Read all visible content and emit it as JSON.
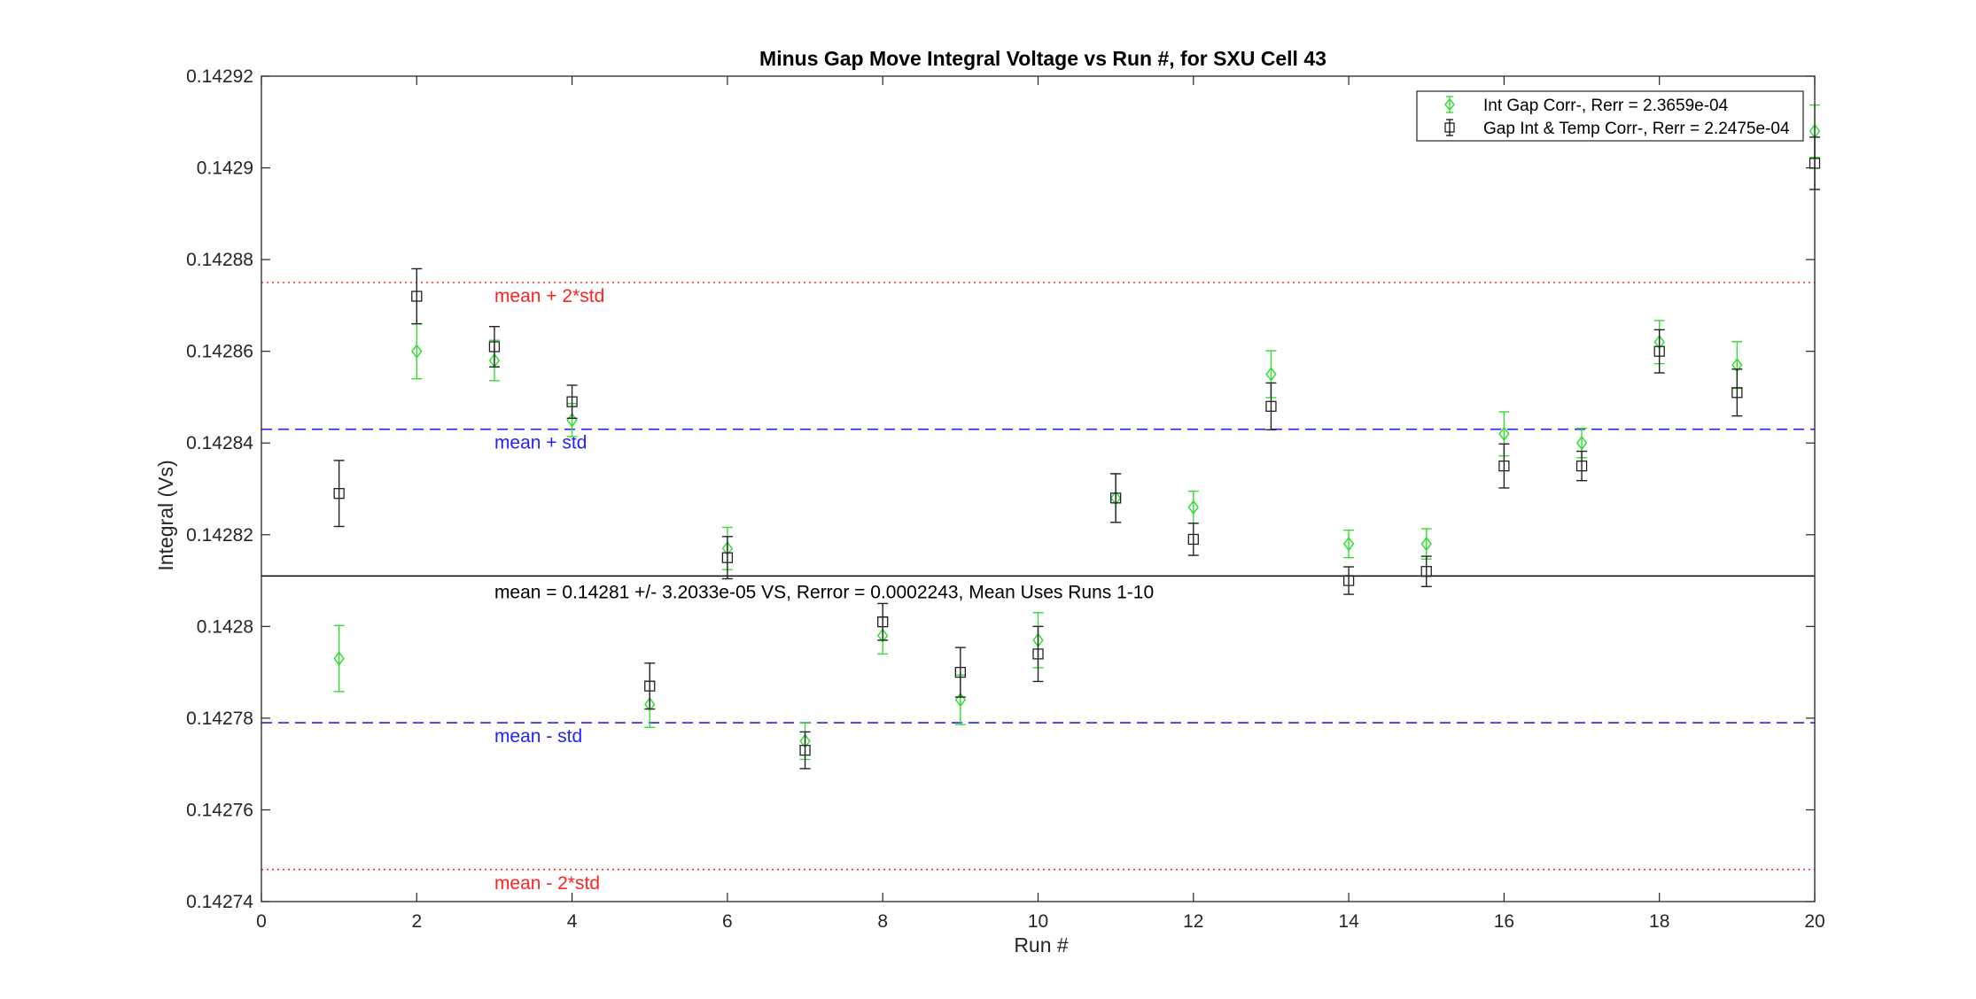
{
  "chart_data": {
    "type": "scatter",
    "title": "Minus Gap Move Integral Voltage vs Run #, for SXU Cell 43",
    "xlabel": "Run #",
    "ylabel": "Integral (Vs)",
    "xlim": [
      0,
      20
    ],
    "ylim": [
      0.14274,
      0.14292
    ],
    "xticks": [
      0,
      2,
      4,
      6,
      8,
      10,
      12,
      14,
      16,
      18,
      20
    ],
    "xtick_labels": [
      "0",
      "2",
      "4",
      "6",
      "8",
      "10",
      "12",
      "14",
      "16",
      "18",
      "20"
    ],
    "yticks": [
      0.14274,
      0.14276,
      0.14278,
      0.1428,
      0.14282,
      0.14284,
      0.14286,
      0.14288,
      0.1429,
      0.14292
    ],
    "ytick_labels": [
      "0.14274",
      "0.14276",
      "0.14278",
      "0.1428",
      "0.14282",
      "0.14284",
      "0.14286",
      "0.14288",
      "0.1429",
      "0.14292"
    ],
    "grid": false,
    "legend_position": "top-right",
    "series": [
      {
        "name": "Int Gap Corr-, Rerr = 2.3659e-04",
        "marker": "diamond",
        "color": "#33dd33",
        "x": [
          1,
          2,
          3,
          4,
          5,
          6,
          7,
          8,
          9,
          10,
          11,
          12,
          13,
          14,
          15,
          16,
          17,
          18,
          19,
          20
        ],
        "y": [
          0.142793,
          0.14286,
          0.142858,
          0.142845,
          0.142783,
          0.142817,
          0.142775,
          0.142798,
          0.142784,
          0.142797,
          0.142828,
          0.142826,
          0.142855,
          0.142818,
          0.142818,
          0.142842,
          0.14284,
          0.142862,
          0.142857,
          0.142908
        ],
        "err": [
          7.2e-06,
          6e-06,
          4.4e-06,
          3.6e-06,
          5e-06,
          4.6e-06,
          4e-06,
          4e-06,
          5.4e-06,
          6e-06,
          5.3e-06,
          3.5e-06,
          5.1e-06,
          3e-06,
          3.3e-06,
          4.8e-06,
          3.2e-06,
          4.7e-06,
          5.1e-06,
          5.7e-06
        ]
      },
      {
        "name": "Gap Int & Temp Corr-, Rerr = 2.2475e-04",
        "marker": "square",
        "color": "#222222",
        "x": [
          1,
          2,
          3,
          4,
          5,
          6,
          7,
          8,
          9,
          10,
          11,
          12,
          13,
          14,
          15,
          16,
          17,
          18,
          19,
          20
        ],
        "y": [
          0.142829,
          0.142872,
          0.142861,
          0.142849,
          0.142787,
          0.142815,
          0.142773,
          0.142801,
          0.14279,
          0.142794,
          0.142828,
          0.142819,
          0.142848,
          0.14281,
          0.142812,
          0.142835,
          0.142835,
          0.14286,
          0.142851,
          0.142901
        ],
        "err": [
          7.2e-06,
          6e-06,
          4.4e-06,
          3.6e-06,
          5e-06,
          4.6e-06,
          4e-06,
          4e-06,
          5.4e-06,
          6e-06,
          5.3e-06,
          3.5e-06,
          5.1e-06,
          3e-06,
          3.3e-06,
          4.8e-06,
          3.2e-06,
          4.7e-06,
          5.1e-06,
          5.7e-06
        ]
      }
    ],
    "reference_lines": [
      {
        "label": "mean + 2*std",
        "y": 0.142875,
        "color": "#ff2222",
        "style": "dotted"
      },
      {
        "label": "mean + std",
        "y": 0.142843,
        "color": "#2222ff",
        "style": "dashed"
      },
      {
        "label": "mean = 0.14281 +/- 3.2033e-05 VS, Rerror = 0.0002243, Mean Uses Runs 1-10",
        "y": 0.142811,
        "color": "#000000",
        "style": "solid"
      },
      {
        "label": "mean - std",
        "y": 0.142779,
        "color": "#2222ff",
        "style": "dashed"
      },
      {
        "label": "mean - 2*std",
        "y": 0.142747,
        "color": "#ff2222",
        "style": "dotted"
      }
    ],
    "annotation_x": 3
  }
}
